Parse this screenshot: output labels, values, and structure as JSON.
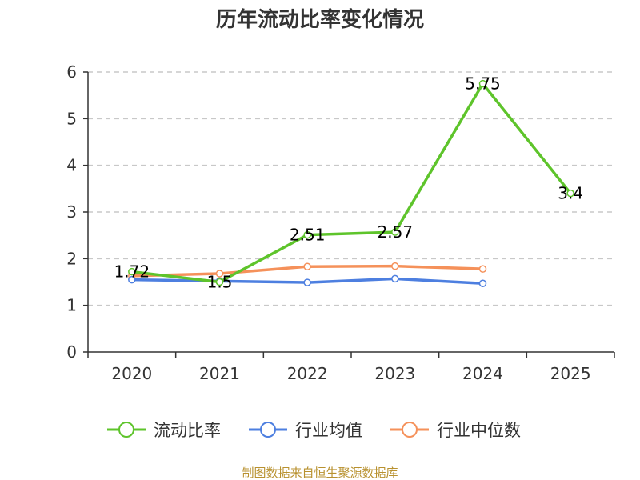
{
  "chart_data": {
    "type": "line",
    "title": "历年流动比率变化情况",
    "categories": [
      "2020",
      "2021",
      "2022",
      "2023",
      "2024",
      "2025"
    ],
    "ylim": [
      0,
      6
    ],
    "yticks": [
      "0",
      "1",
      "2",
      "3",
      "4",
      "5",
      "6"
    ],
    "grid": true,
    "legend_position": "bottom",
    "series": [
      {
        "name": "流动比率",
        "color": "#5ec42b",
        "values": [
          1.72,
          1.5,
          2.51,
          2.57,
          5.75,
          3.4
        ],
        "labels": [
          "1.72",
          "1.5",
          "2.51",
          "2.57",
          "5.75",
          "3.4"
        ]
      },
      {
        "name": "行业均值",
        "color": "#4d7fe0",
        "values": [
          1.55,
          1.52,
          1.49,
          1.57,
          1.47,
          null
        ],
        "labels": []
      },
      {
        "name": "行业中位数",
        "color": "#f5915a",
        "values": [
          1.63,
          1.68,
          1.83,
          1.84,
          1.78,
          null
        ],
        "labels": []
      }
    ],
    "source": "制图数据来自恒生聚源数据库"
  }
}
